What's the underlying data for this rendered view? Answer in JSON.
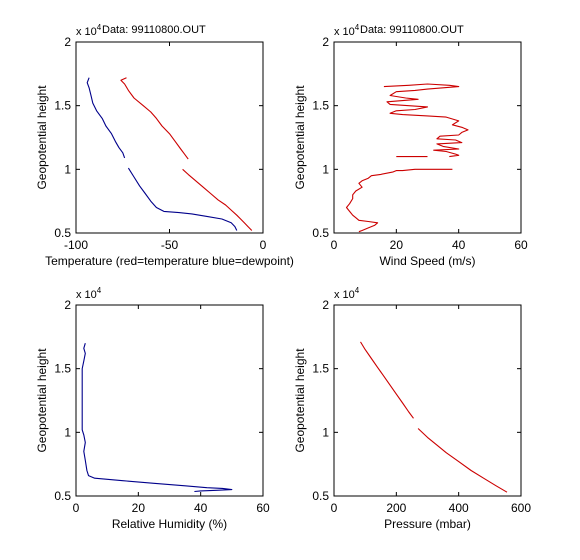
{
  "chart_data": [
    {
      "type": "line",
      "title": "Data: 99110800.OUT",
      "xlabel": "Temperature (red=temperature blue=dewpoint)",
      "ylabel": "Geopotential height",
      "y_multiplier": "x 10",
      "y_multiplier_exp": "4",
      "xlim": [
        -100,
        0
      ],
      "ylim": [
        0.5,
        2.0
      ],
      "xticks": [
        "-100",
        "-50",
        "0"
      ],
      "yticks": [
        "0.5",
        "1",
        "1.5",
        "2"
      ],
      "series": [
        {
          "color": "#cc0000",
          "segments": [
            [
              [
                -73,
                1.72
              ],
              [
                -76,
                1.7
              ],
              [
                -74,
                1.67
              ],
              [
                -72,
                1.62
              ],
              [
                -69,
                1.56
              ],
              [
                -64,
                1.5
              ],
              [
                -60,
                1.45
              ],
              [
                -57,
                1.4
              ],
              [
                -54,
                1.34
              ],
              [
                -50,
                1.28
              ],
              [
                -47,
                1.22
              ],
              [
                -44,
                1.16
              ],
              [
                -42,
                1.12
              ],
              [
                -40,
                1.08
              ]
            ],
            [
              [
                -43,
                1.0
              ],
              [
                -40,
                0.96
              ],
              [
                -36,
                0.91
              ],
              [
                -32,
                0.86
              ],
              [
                -28,
                0.81
              ],
              [
                -24,
                0.76
              ],
              [
                -20,
                0.72
              ],
              [
                -17,
                0.68
              ],
              [
                -14,
                0.64
              ],
              [
                -12,
                0.61
              ],
              [
                -10,
                0.58
              ],
              [
                -8,
                0.55
              ],
              [
                -6,
                0.52
              ]
            ]
          ]
        },
        {
          "color": "#00008b",
          "segments": [
            [
              [
                -93,
                1.72
              ],
              [
                -94,
                1.68
              ],
              [
                -93,
                1.64
              ],
              [
                -92,
                1.58
              ],
              [
                -91,
                1.52
              ],
              [
                -89,
                1.46
              ],
              [
                -86,
                1.4
              ],
              [
                -84,
                1.34
              ],
              [
                -81,
                1.28
              ],
              [
                -79,
                1.22
              ],
              [
                -77,
                1.17
              ],
              [
                -75,
                1.13
              ],
              [
                -74,
                1.09
              ]
            ],
            [
              [
                -72,
                1.01
              ],
              [
                -69,
                0.94
              ],
              [
                -66,
                0.87
              ],
              [
                -63,
                0.81
              ],
              [
                -60,
                0.75
              ],
              [
                -57,
                0.7
              ],
              [
                -53,
                0.67
              ],
              [
                -45,
                0.66
              ],
              [
                -38,
                0.65
              ],
              [
                -30,
                0.63
              ],
              [
                -22,
                0.61
              ],
              [
                -17,
                0.58
              ],
              [
                -15,
                0.55
              ],
              [
                -14,
                0.52
              ]
            ]
          ]
        }
      ]
    },
    {
      "type": "line",
      "title": "Data: 99110800.OUT",
      "xlabel": "Wind Speed (m/s)",
      "ylabel": "Geopotential height",
      "y_multiplier": "x 10",
      "y_multiplier_exp": "4",
      "xlim": [
        0,
        60
      ],
      "ylim": [
        0.5,
        2.0
      ],
      "xticks": [
        "0",
        "20",
        "40",
        "60"
      ],
      "yticks": [
        "0.5",
        "1",
        "1.5",
        "2"
      ],
      "series": [
        {
          "color": "#cc0000",
          "segments": [
            [
              [
                16,
                1.65
              ],
              [
                24,
                1.66
              ],
              [
                30,
                1.67
              ],
              [
                37,
                1.66
              ],
              [
                40,
                1.65
              ],
              [
                35,
                1.64
              ],
              [
                30,
                1.63
              ],
              [
                26,
                1.62
              ],
              [
                20,
                1.61
              ],
              [
                18,
                1.58
              ],
              [
                23,
                1.56
              ],
              [
                27,
                1.55
              ],
              [
                22,
                1.54
              ],
              [
                17,
                1.53
              ],
              [
                18,
                1.51
              ],
              [
                24,
                1.5
              ],
              [
                30,
                1.49
              ],
              [
                26,
                1.47
              ],
              [
                20,
                1.46
              ],
              [
                18,
                1.44
              ],
              [
                22,
                1.43
              ],
              [
                30,
                1.42
              ],
              [
                36,
                1.41
              ],
              [
                40,
                1.38
              ],
              [
                38,
                1.35
              ],
              [
                41,
                1.33
              ],
              [
                43,
                1.31
              ],
              [
                41,
                1.29
              ],
              [
                40,
                1.27
              ],
              [
                34,
                1.26
              ],
              [
                33,
                1.24
              ],
              [
                39,
                1.23
              ],
              [
                41,
                1.21
              ],
              [
                33,
                1.2
              ],
              [
                35,
                1.18
              ],
              [
                40,
                1.16
              ],
              [
                32,
                1.15
              ],
              [
                36,
                1.14
              ],
              [
                39,
                1.12
              ],
              [
                40,
                1.11
              ],
              [
                37,
                1.1
              ]
            ],
            [
              [
                30,
                1.1
              ],
              [
                25,
                1.1
              ],
              [
                20,
                1.1
              ]
            ],
            [
              [
                38,
                1.0
              ],
              [
                34,
                1.0
              ],
              [
                30,
                1.0
              ],
              [
                26,
                1.0
              ],
              [
                22,
                0.99
              ],
              [
                20,
                0.99
              ],
              [
                19,
                0.98
              ],
              [
                15,
                0.96
              ],
              [
                12,
                0.95
              ],
              [
                11,
                0.93
              ],
              [
                9,
                0.91
              ],
              [
                8,
                0.89
              ],
              [
                9,
                0.86
              ],
              [
                7,
                0.83
              ],
              [
                6,
                0.8
              ],
              [
                6,
                0.77
              ],
              [
                5,
                0.73
              ],
              [
                4,
                0.7
              ],
              [
                5,
                0.67
              ],
              [
                6,
                0.64
              ],
              [
                7,
                0.62
              ],
              [
                8,
                0.6
              ],
              [
                11,
                0.59
              ],
              [
                14,
                0.58
              ],
              [
                13,
                0.56
              ],
              [
                11,
                0.54
              ],
              [
                9,
                0.52
              ],
              [
                8,
                0.51
              ]
            ]
          ]
        }
      ]
    },
    {
      "type": "line",
      "title": "",
      "xlabel": "Relative Humidity (%)",
      "ylabel": "Geopotential height",
      "y_multiplier": "x 10",
      "y_multiplier_exp": "4",
      "xlim": [
        0,
        60
      ],
      "ylim": [
        0.5,
        2.0
      ],
      "xticks": [
        "0",
        "20",
        "40",
        "60"
      ],
      "yticks": [
        "0.5",
        "1",
        "1.5",
        "2"
      ],
      "series": [
        {
          "color": "#00008b",
          "segments": [
            [
              [
                3,
                1.7
              ],
              [
                2.5,
                1.66
              ],
              [
                3,
                1.62
              ],
              [
                2.5,
                1.56
              ],
              [
                2,
                1.5
              ],
              [
                2,
                1.4
              ],
              [
                2,
                1.3
              ],
              [
                2,
                1.2
              ],
              [
                2,
                1.1
              ],
              [
                2,
                1.02
              ],
              [
                2.5,
                0.98
              ],
              [
                3,
                0.92
              ],
              [
                2.5,
                0.85
              ],
              [
                3,
                0.78
              ],
              [
                3.5,
                0.7
              ],
              [
                4,
                0.66
              ],
              [
                6,
                0.64
              ],
              [
                15,
                0.62
              ],
              [
                25,
                0.6
              ],
              [
                35,
                0.58
              ],
              [
                42,
                0.565
              ],
              [
                47,
                0.56
              ],
              [
                50,
                0.55
              ],
              [
                45,
                0.545
              ],
              [
                40,
                0.54
              ],
              [
                38,
                0.535
              ]
            ]
          ]
        }
      ]
    },
    {
      "type": "line",
      "title": "",
      "xlabel": "Pressure (mbar)",
      "ylabel": "Geopotential height",
      "y_multiplier": "x 10",
      "y_multiplier_exp": "4",
      "xlim": [
        0,
        600
      ],
      "ylim": [
        0.5,
        2.0
      ],
      "xticks": [
        "0",
        "200",
        "400",
        "600"
      ],
      "yticks": [
        "0.5",
        "1",
        "1.5",
        "2"
      ],
      "series": [
        {
          "color": "#cc0000",
          "segments": [
            [
              [
                85,
                1.71
              ],
              [
                100,
                1.65
              ],
              [
                120,
                1.58
              ],
              [
                140,
                1.51
              ],
              [
                160,
                1.44
              ],
              [
                180,
                1.37
              ],
              [
                200,
                1.3
              ],
              [
                220,
                1.23
              ],
              [
                240,
                1.16
              ],
              [
                255,
                1.11
              ]
            ],
            [
              [
                270,
                1.03
              ],
              [
                300,
                0.96
              ],
              [
                330,
                0.9
              ],
              [
                360,
                0.84
              ],
              [
                400,
                0.77
              ],
              [
                440,
                0.7
              ],
              [
                480,
                0.64
              ],
              [
                520,
                0.58
              ],
              [
                555,
                0.53
              ]
            ]
          ]
        }
      ]
    }
  ]
}
